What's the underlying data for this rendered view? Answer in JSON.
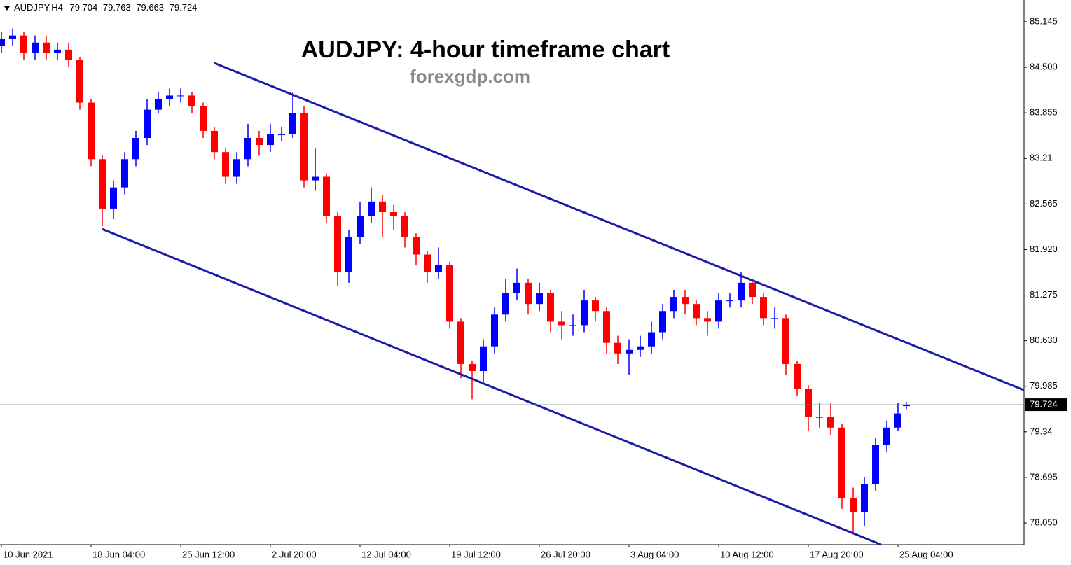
{
  "chart_data": {
    "type": "candlestick",
    "title": "AUDJPY: 4-hour timeframe chart",
    "subtitle": "forexgdp.com",
    "symbol": "AUDJPY,H4",
    "x": [
      0,
      4,
      8,
      12,
      16,
      20,
      24,
      28,
      32,
      36,
      40,
      44,
      48,
      52,
      56,
      60,
      64,
      68,
      72,
      76,
      80,
      84,
      88,
      92,
      96,
      100,
      104,
      108,
      112,
      116,
      120,
      124,
      128,
      132,
      136,
      140,
      144,
      148,
      152,
      156,
      160,
      164,
      168,
      172,
      176,
      180,
      184,
      188,
      192,
      196,
      200,
      204,
      208,
      212,
      216,
      220,
      224,
      228,
      232,
      236,
      240,
      244,
      248,
      252,
      256,
      260,
      264,
      268,
      272,
      276,
      280,
      284,
      288,
      292,
      296,
      300,
      304,
      308,
      312,
      316,
      320,
      323
    ],
    "open": [
      84.8,
      84.9,
      84.95,
      84.7,
      84.85,
      84.7,
      84.75,
      84.6,
      84.0,
      83.2,
      82.5,
      82.8,
      83.2,
      83.5,
      83.9,
      84.05,
      84.1,
      84.1,
      83.95,
      83.6,
      83.3,
      82.95,
      83.2,
      83.5,
      83.4,
      83.55,
      83.55,
      83.85,
      82.9,
      82.95,
      82.4,
      81.6,
      82.1,
      82.4,
      82.6,
      82.45,
      82.4,
      82.1,
      81.85,
      81.6,
      81.7,
      80.9,
      80.3,
      80.2,
      80.55,
      81.0,
      81.3,
      81.45,
      81.15,
      81.3,
      80.9,
      80.85,
      80.85,
      81.2,
      81.05,
      80.6,
      80.45,
      80.5,
      80.55,
      80.75,
      81.05,
      81.25,
      81.15,
      80.95,
      80.9,
      81.2,
      81.2,
      81.45,
      81.25,
      80.95,
      80.95,
      80.3,
      79.95,
      79.55,
      79.55,
      79.4,
      78.4,
      78.2,
      78.6,
      79.15,
      79.4,
      79.704
    ],
    "high": [
      85.0,
      85.05,
      85.0,
      84.95,
      84.95,
      84.85,
      84.85,
      84.65,
      84.05,
      83.25,
      82.9,
      83.3,
      83.6,
      84.05,
      84.15,
      84.2,
      84.2,
      84.15,
      84.0,
      83.65,
      83.35,
      83.3,
      83.7,
      83.6,
      83.7,
      83.65,
      84.15,
      83.95,
      83.35,
      83.0,
      82.45,
      82.2,
      82.6,
      82.8,
      82.7,
      82.55,
      82.45,
      82.15,
      81.9,
      81.95,
      81.75,
      80.95,
      80.35,
      80.65,
      81.1,
      81.5,
      81.65,
      81.5,
      81.45,
      81.35,
      81.05,
      81.0,
      81.35,
      81.25,
      81.1,
      80.7,
      80.65,
      80.7,
      80.9,
      81.15,
      81.35,
      81.35,
      81.2,
      81.05,
      81.3,
      81.3,
      81.6,
      81.5,
      81.3,
      81.1,
      81.0,
      80.35,
      80.0,
      79.75,
      79.75,
      79.45,
      78.55,
      78.7,
      79.25,
      79.5,
      79.75,
      79.763
    ],
    "low": [
      84.7,
      84.8,
      84.6,
      84.6,
      84.6,
      84.6,
      84.5,
      83.9,
      83.1,
      82.25,
      82.35,
      82.7,
      83.1,
      83.4,
      83.85,
      83.95,
      84.0,
      83.85,
      83.5,
      83.2,
      82.85,
      82.85,
      83.1,
      83.25,
      83.3,
      83.45,
      83.5,
      82.8,
      82.75,
      82.3,
      81.4,
      81.45,
      82.0,
      82.3,
      82.1,
      82.2,
      81.95,
      81.7,
      81.45,
      81.5,
      80.8,
      80.1,
      79.8,
      80.05,
      80.45,
      80.9,
      81.2,
      81.0,
      81.05,
      80.75,
      80.65,
      80.7,
      80.75,
      80.9,
      80.45,
      80.3,
      80.15,
      80.4,
      80.45,
      80.65,
      80.95,
      81.0,
      80.85,
      80.7,
      80.8,
      81.1,
      81.1,
      81.15,
      80.85,
      80.8,
      80.15,
      79.85,
      79.35,
      79.4,
      79.3,
      78.25,
      77.9,
      78.0,
      78.5,
      79.05,
      79.35,
      79.663
    ],
    "close": [
      84.9,
      84.95,
      84.7,
      84.85,
      84.7,
      84.75,
      84.6,
      84.0,
      83.2,
      82.5,
      82.8,
      83.2,
      83.5,
      83.9,
      84.05,
      84.1,
      84.1,
      83.95,
      83.6,
      83.3,
      82.95,
      83.2,
      83.5,
      83.4,
      83.55,
      83.55,
      83.85,
      82.9,
      82.95,
      82.4,
      81.6,
      82.1,
      82.4,
      82.6,
      82.45,
      82.4,
      82.1,
      81.85,
      81.6,
      81.7,
      80.9,
      80.3,
      80.2,
      80.55,
      81.0,
      81.3,
      81.45,
      81.15,
      81.3,
      80.9,
      80.85,
      80.85,
      81.2,
      81.05,
      80.6,
      80.45,
      80.5,
      80.55,
      80.75,
      81.05,
      81.25,
      81.15,
      80.95,
      80.9,
      81.2,
      81.2,
      81.45,
      81.25,
      80.95,
      80.95,
      80.3,
      79.95,
      79.55,
      79.55,
      79.4,
      78.4,
      78.2,
      78.6,
      79.15,
      79.4,
      79.6,
      79.724
    ],
    "up_color": "#0000ff",
    "down_color": "#ff0000",
    "trendlines": [
      {
        "x": [
          76,
          365
        ],
        "y": [
          84.56,
          79.93
        ],
        "color": "#1c1ca8"
      },
      {
        "x": [
          36,
          314
        ],
        "y": [
          82.21,
          77.743
        ],
        "color": "#1c1ca8"
      }
    ],
    "xlim": [
      0,
      365
    ],
    "xticks": [
      {
        "value": 0,
        "label": "10 Jun 2021"
      },
      {
        "value": 32,
        "label": "18 Jun 04:00"
      },
      {
        "value": 64,
        "label": "25 Jun 12:00"
      },
      {
        "value": 96,
        "label": "2 Jul 20:00"
      },
      {
        "value": 128,
        "label": "12 Jul 04:00"
      },
      {
        "value": 160,
        "label": "19 Jul 12:00"
      },
      {
        "value": 192,
        "label": "26 Jul 20:00"
      },
      {
        "value": 224,
        "label": "3 Aug 04:00"
      },
      {
        "value": 256,
        "label": "10 Aug 12:00"
      },
      {
        "value": 288,
        "label": "17 Aug 20:00"
      },
      {
        "value": 320,
        "label": "25 Aug 04:00"
      }
    ],
    "ylim": [
      77.743,
      85.452
    ],
    "yticks": [
      85.145,
      {
        "value": 84.5,
        "label": "84.500"
      },
      83.855,
      83.21,
      82.565,
      {
        "value": 81.92,
        "label": "81.920"
      },
      81.275,
      {
        "value": 80.63,
        "label": "80.630"
      },
      79.985,
      79.34,
      78.695,
      {
        "value": 78.05,
        "label": "78.050"
      }
    ]
  }
}
